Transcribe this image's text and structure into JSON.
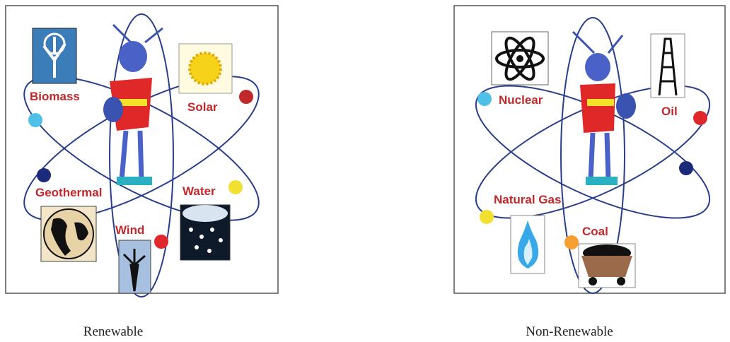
{
  "panels": [
    {
      "caption": "Renewable",
      "labels": [
        "Biomass",
        "Solar",
        "Geothermal",
        "Water",
        "Wind"
      ]
    },
    {
      "caption": "Non-Renewable",
      "labels": [
        "Nuclear",
        "Oil",
        "Natural Gas",
        "Coal"
      ]
    }
  ]
}
